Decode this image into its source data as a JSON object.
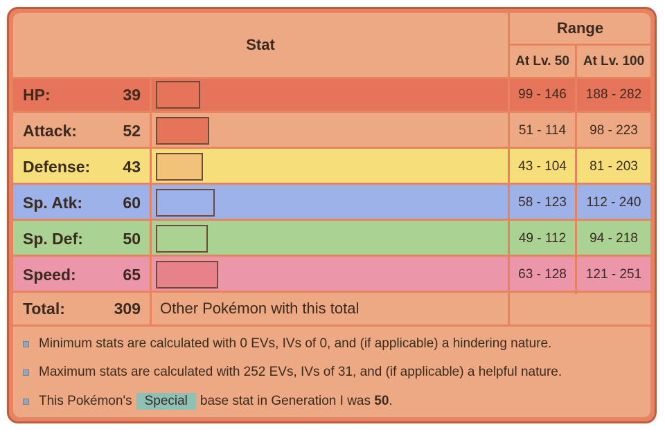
{
  "header": {
    "stat": "Stat",
    "range": "Range",
    "lv50": "At Lv. 50",
    "lv100": "At Lv. 100"
  },
  "stats": [
    {
      "name": "HP:",
      "value": "39",
      "lv50": "99 - 146",
      "lv100": "188 - 282",
      "row_color": "#e5745a",
      "bar_color": "#e5745a"
    },
    {
      "name": "Attack:",
      "value": "52",
      "lv50": "51 - 114",
      "lv100": "98 - 223",
      "row_color": "#eda983",
      "bar_color": "#e5745a"
    },
    {
      "name": "Defense:",
      "value": "43",
      "lv50": "43 - 104",
      "lv100": "81 - 203",
      "row_color": "#f6df7a",
      "bar_color": "#f2c27a"
    },
    {
      "name": "Sp. Atk:",
      "value": "60",
      "lv50": "58 - 123",
      "lv100": "112 - 240",
      "row_color": "#9cb2e8",
      "bar_color": "#9cb2e8"
    },
    {
      "name": "Sp. Def:",
      "value": "50",
      "lv50": "49 - 112",
      "lv100": "94 - 218",
      "row_color": "#a9d293",
      "bar_color": "#a9d293"
    },
    {
      "name": "Speed:",
      "value": "65",
      "lv50": "63 - 128",
      "lv100": "121 - 251",
      "row_color": "#ec96aa",
      "bar_color": "#e8828a"
    }
  ],
  "total": {
    "label": "Total:",
    "value": "309",
    "link": "Other Pokémon with this total"
  },
  "notes": {
    "min": "Minimum stats are calculated with 0 EVs, IVs of 0, and (if applicable) a hindering nature.",
    "max": "Maximum stats are calculated with 252 EVs, IVs of 31, and (if applicable) a helpful nature.",
    "special_prefix": "This Pokémon's",
    "special_tag": "Special",
    "special_suffix": "base stat in Generation I was",
    "special_value": "50",
    "special_end": "."
  },
  "bar_max_stat": 255
}
